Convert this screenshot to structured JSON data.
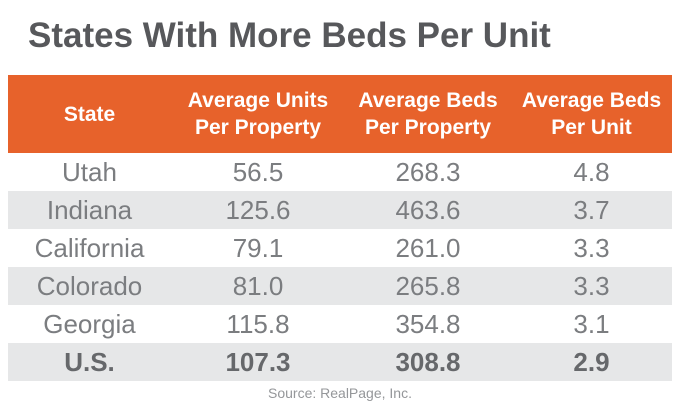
{
  "title": "States With More Beds Per Unit",
  "table": {
    "headers": [
      {
        "line1": "State",
        "line2": ""
      },
      {
        "line1": "Average Units",
        "line2": "Per Property"
      },
      {
        "line1": "Average Beds",
        "line2": "Per Property"
      },
      {
        "line1": "Average Beds",
        "line2": "Per Unit"
      }
    ],
    "rows": [
      {
        "state": "Utah",
        "units": "56.5",
        "beds": "268.3",
        "bpu": "4.8"
      },
      {
        "state": "Indiana",
        "units": "125.6",
        "beds": "463.6",
        "bpu": "3.7"
      },
      {
        "state": "California",
        "units": "79.1",
        "beds": "261.0",
        "bpu": "3.3"
      },
      {
        "state": "Colorado",
        "units": "81.0",
        "beds": "265.8",
        "bpu": "3.3"
      },
      {
        "state": "Georgia",
        "units": "115.8",
        "beds": "354.8",
        "bpu": "3.1"
      },
      {
        "state": "U.S.",
        "units": "107.3",
        "beds": "308.8",
        "bpu": "2.9"
      }
    ]
  },
  "source": "Source: RealPage, Inc.",
  "colors": {
    "header_orange": "#E7622B",
    "alt_row_gray": "#E6E7E8",
    "title_text": "#57585B",
    "body_text": "#7B7D80",
    "us_row_text": "#66686B",
    "header_text": "#FFFFFF",
    "source_text": "#95979A"
  },
  "chart_data": {
    "type": "table",
    "title": "States With More Beds Per Unit",
    "columns": [
      "State",
      "Average Units Per Property",
      "Average Beds Per Property",
      "Average Beds Per Unit"
    ],
    "rows": [
      [
        "Utah",
        56.5,
        268.3,
        4.8
      ],
      [
        "Indiana",
        125.6,
        463.6,
        3.7
      ],
      [
        "California",
        79.1,
        261.0,
        3.3
      ],
      [
        "Colorado",
        81.0,
        265.8,
        3.3
      ],
      [
        "Georgia",
        115.8,
        354.8,
        3.1
      ],
      [
        "U.S.",
        107.3,
        308.8,
        2.9
      ]
    ],
    "source": "Source: RealPage, Inc.",
    "layout": {
      "alternating_rows": true,
      "gridlines": false,
      "summary_row": "U.S."
    }
  }
}
